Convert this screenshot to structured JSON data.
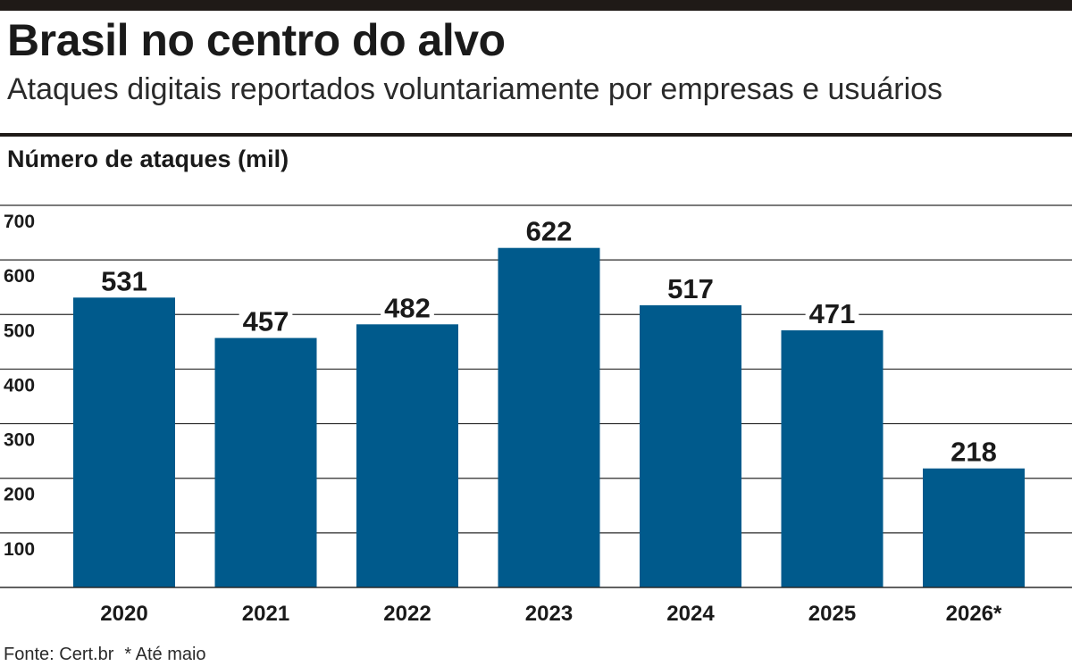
{
  "chart_data": {
    "type": "bar",
    "title": "Brasil no centro do alvo",
    "subtitle": "Ataques digitais reportados voluntariamente por empresas e usuários",
    "ylabel": "Número de ataques (mil)",
    "xlabel": "",
    "categories": [
      "2020",
      "2021",
      "2022",
      "2023",
      "2024",
      "2025",
      "2026*"
    ],
    "values": [
      531,
      457,
      482,
      622,
      517,
      471,
      218
    ],
    "value_labels": [
      "531",
      "457",
      "482",
      "622",
      "517",
      "471",
      "218"
    ],
    "ylim": [
      0,
      700
    ],
    "yticks": [
      100,
      200,
      300,
      400,
      500,
      600,
      700
    ],
    "ytick_labels": [
      "100",
      "200",
      "300",
      "400",
      "500",
      "600",
      "700"
    ],
    "grid": true,
    "bar_color": "#005a8c",
    "source": "Fonte: Cert.br",
    "note": "* Até maio"
  }
}
